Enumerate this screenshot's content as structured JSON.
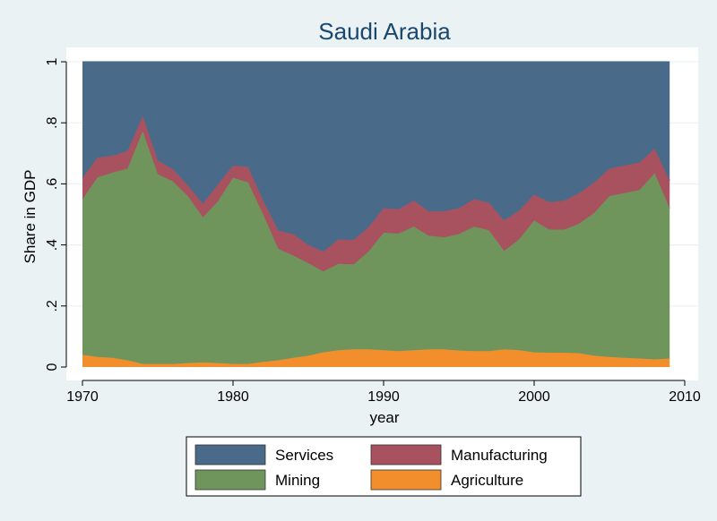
{
  "chart_data": {
    "type": "area",
    "stacked": true,
    "title": "Saudi Arabia",
    "xlabel": "year",
    "ylabel": "Share in GDP",
    "xlim": [
      1970,
      2010
    ],
    "ylim": [
      0,
      1
    ],
    "x_ticks": [
      1970,
      1980,
      1990,
      2000,
      2010
    ],
    "x_tick_labels": [
      "1970",
      "1980",
      "1990",
      "2000",
      "2010"
    ],
    "y_ticks": [
      0,
      0.2,
      0.4,
      0.6,
      0.8,
      1
    ],
    "y_tick_labels": [
      "0",
      ".2",
      ".4",
      ".6",
      ".8",
      "1"
    ],
    "grid": "horizontal",
    "legend_position": "bottom",
    "x": [
      1970,
      1971,
      1972,
      1973,
      1974,
      1975,
      1976,
      1977,
      1978,
      1979,
      1980,
      1981,
      1982,
      1983,
      1984,
      1985,
      1986,
      1987,
      1988,
      1989,
      1990,
      1991,
      1992,
      1993,
      1994,
      1995,
      1996,
      1997,
      1998,
      1999,
      2000,
      2001,
      2002,
      2003,
      2004,
      2005,
      2006,
      2007,
      2008,
      2009
    ],
    "series": [
      {
        "name": "Agriculture",
        "color": "#f28e2b",
        "values": [
          0.04,
          0.033,
          0.03,
          0.022,
          0.01,
          0.01,
          0.01,
          0.013,
          0.015,
          0.013,
          0.01,
          0.01,
          0.017,
          0.022,
          0.03,
          0.037,
          0.048,
          0.055,
          0.058,
          0.058,
          0.055,
          0.052,
          0.055,
          0.058,
          0.058,
          0.054,
          0.052,
          0.052,
          0.058,
          0.055,
          0.048,
          0.047,
          0.047,
          0.045,
          0.037,
          0.033,
          0.03,
          0.028,
          0.025,
          0.028
        ]
      },
      {
        "name": "Mining",
        "color": "#6f955c",
        "values": [
          0.51,
          0.588,
          0.607,
          0.628,
          0.762,
          0.622,
          0.598,
          0.547,
          0.475,
          0.53,
          0.61,
          0.595,
          0.483,
          0.365,
          0.335,
          0.303,
          0.265,
          0.283,
          0.278,
          0.32,
          0.385,
          0.385,
          0.405,
          0.372,
          0.367,
          0.381,
          0.408,
          0.396,
          0.322,
          0.363,
          0.432,
          0.403,
          0.403,
          0.425,
          0.468,
          0.527,
          0.54,
          0.552,
          0.61,
          0.492
        ]
      },
      {
        "name": "Manufacturing",
        "color": "#a8515f",
        "values": [
          0.07,
          0.065,
          0.055,
          0.058,
          0.05,
          0.045,
          0.04,
          0.035,
          0.045,
          0.055,
          0.04,
          0.05,
          0.045,
          0.06,
          0.07,
          0.06,
          0.065,
          0.08,
          0.08,
          0.08,
          0.08,
          0.08,
          0.085,
          0.08,
          0.085,
          0.085,
          0.09,
          0.09,
          0.1,
          0.095,
          0.085,
          0.09,
          0.095,
          0.1,
          0.1,
          0.09,
          0.09,
          0.09,
          0.08,
          0.09
        ]
      },
      {
        "name": "Services",
        "color": "#496b89",
        "values": [
          0.38,
          0.314,
          0.308,
          0.292,
          0.178,
          0.323,
          0.352,
          0.405,
          0.465,
          0.402,
          0.34,
          0.345,
          0.455,
          0.553,
          0.565,
          0.6,
          0.622,
          0.582,
          0.584,
          0.542,
          0.48,
          0.483,
          0.455,
          0.49,
          0.49,
          0.48,
          0.45,
          0.462,
          0.52,
          0.487,
          0.435,
          0.46,
          0.455,
          0.43,
          0.395,
          0.35,
          0.34,
          0.33,
          0.285,
          0.39
        ]
      }
    ],
    "legend_order": [
      "Services",
      "Manufacturing",
      "Mining",
      "Agriculture"
    ]
  }
}
